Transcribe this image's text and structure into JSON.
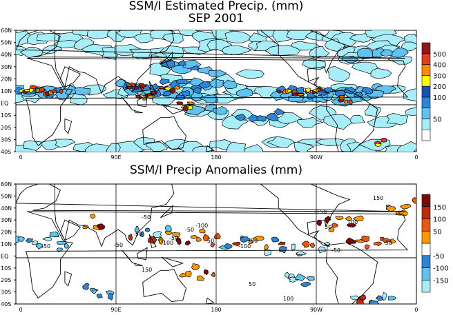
{
  "top_panel": {
    "title_line1": "SSM/I Estimated Precip. (mm)",
    "title_line2": "SEP 2001",
    "lat_labels": [
      "60N",
      "50N",
      "40N",
      "30N",
      "20N",
      "10N",
      "EQ",
      "10S",
      "20S",
      "30S",
      "40S"
    ],
    "lon_labels": [
      "0",
      "90E",
      "180",
      "90W",
      "0"
    ],
    "colorbar": {
      "labels": [
        "500",
        "400",
        "300",
        "200",
        "100",
        "50"
      ],
      "colors": [
        "#ffffff",
        "#a8eef8",
        "#5fc2f0",
        "#2b86d8",
        "#1a4fb4",
        "#ffff00",
        "#ff8c00",
        "#e23b1e",
        "#8b1a1a"
      ]
    }
  },
  "bottom_panel": {
    "title": "SSM/I Precip Anomalies (mm)",
    "lat_labels": [
      "60N",
      "50N",
      "40N",
      "30N",
      "20N",
      "10N",
      "EQ",
      "10S",
      "20S",
      "30S",
      "40S"
    ],
    "lon_labels": [
      "0",
      "90E",
      "180",
      "90W",
      "0"
    ],
    "colorbar": {
      "labels": [
        "150",
        "100",
        "50",
        "-50",
        "-100",
        "-150"
      ],
      "colors": [
        "#a8eef8",
        "#5fc2f0",
        "#2b86d8",
        "#ffffff",
        "#ff9900",
        "#e85a10",
        "#c02a10",
        "#7a0a0a"
      ]
    },
    "contour_labels": [
      "-50",
      "-100",
      "-150",
      "50",
      "100",
      "150"
    ]
  }
}
